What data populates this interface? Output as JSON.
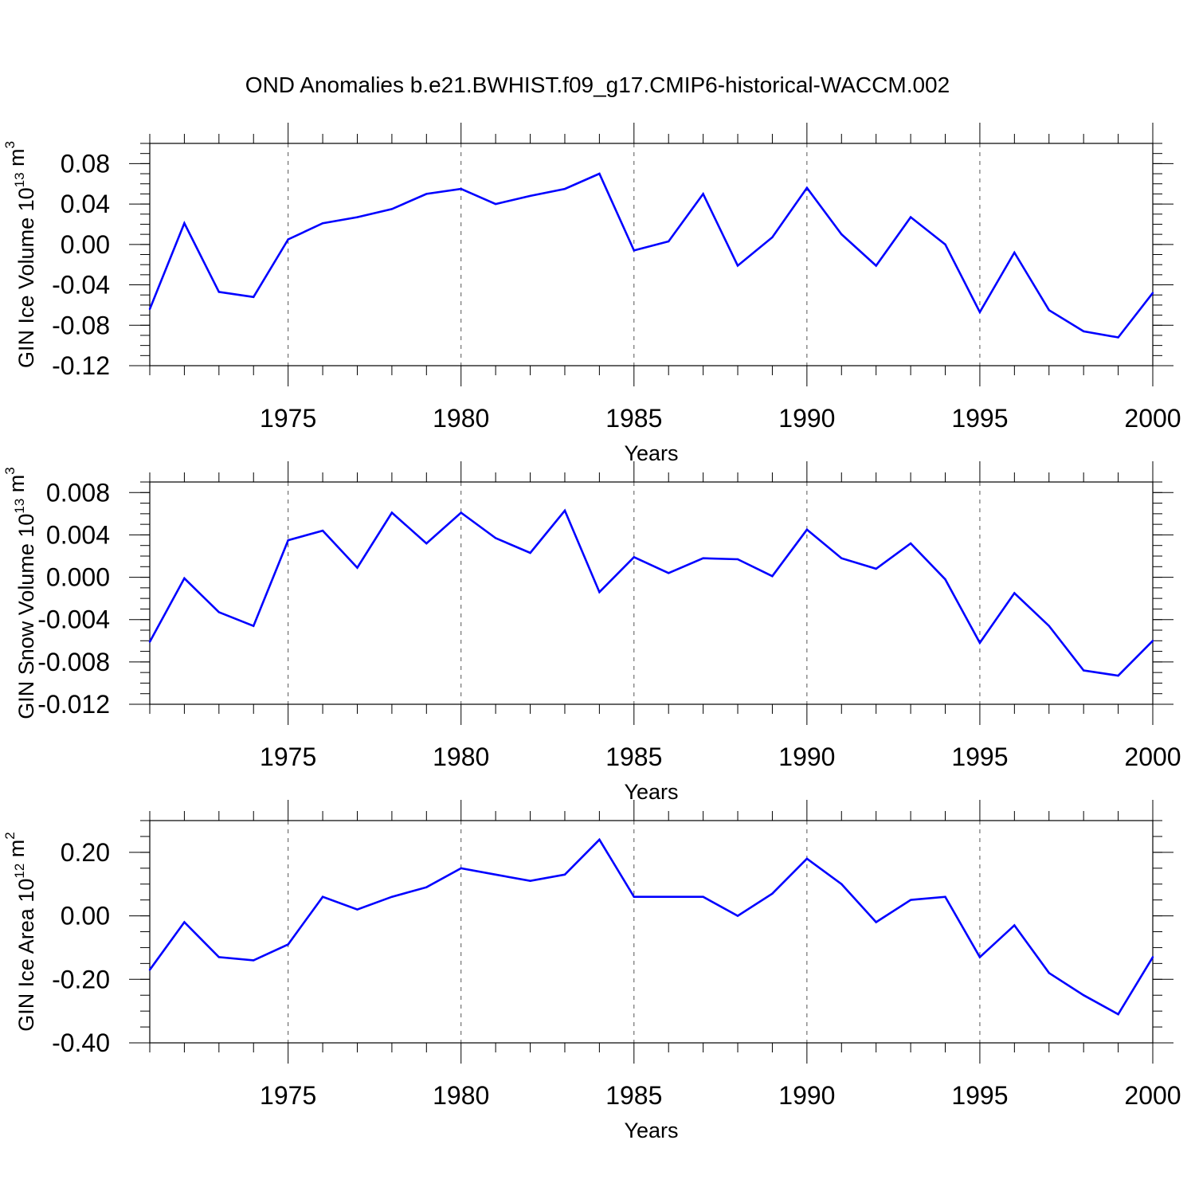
{
  "title": "OND Anomalies b.e21.BWHIST.f09_g17.CMIP6-historical-WACCM.002",
  "line_color": "#0000ff",
  "chart_data": [
    {
      "type": "line",
      "ylabel_base": "GIN Ice Volume 10",
      "ylabel_exp": "13",
      "ylabel_unit": " m",
      "ylabel_unit_exp": "3",
      "xlabel": "Years",
      "xlim": [
        1971,
        2000
      ],
      "ylim": [
        -0.12,
        0.1
      ],
      "yticks": [
        "-0.12",
        "-0.08",
        "-0.04",
        "0.00",
        "0.04",
        "0.08"
      ],
      "xticks": [
        "1975",
        "1980",
        "1985",
        "1990",
        "1995",
        "2000"
      ],
      "x": [
        1971,
        1972,
        1973,
        1974,
        1975,
        1976,
        1977,
        1978,
        1979,
        1980,
        1981,
        1982,
        1983,
        1984,
        1985,
        1986,
        1987,
        1988,
        1989,
        1990,
        1991,
        1992,
        1993,
        1994,
        1995,
        1996,
        1997,
        1998,
        1999,
        2000
      ],
      "values": [
        -0.064,
        0.021,
        -0.047,
        -0.052,
        0.005,
        0.021,
        0.027,
        0.035,
        0.05,
        0.055,
        0.04,
        0.048,
        0.055,
        0.07,
        -0.006,
        0.003,
        0.05,
        -0.021,
        0.007,
        0.056,
        0.01,
        -0.021,
        0.027,
        0.0,
        -0.067,
        -0.008,
        -0.065,
        -0.086,
        -0.092,
        -0.048
      ]
    },
    {
      "type": "line",
      "ylabel_base": "GIN Snow Volume 10",
      "ylabel_exp": "13",
      "ylabel_unit": " m",
      "ylabel_unit_exp": "3",
      "xlabel": "Years",
      "xlim": [
        1971,
        2000
      ],
      "ylim": [
        -0.012,
        0.009
      ],
      "yticks": [
        "-0.012",
        "-0.008",
        "-0.004",
        "0.000",
        "0.004",
        "0.008"
      ],
      "xticks": [
        "1975",
        "1980",
        "1985",
        "1990",
        "1995",
        "2000"
      ],
      "x": [
        1971,
        1972,
        1973,
        1974,
        1975,
        1976,
        1977,
        1978,
        1979,
        1980,
        1981,
        1982,
        1983,
        1984,
        1985,
        1986,
        1987,
        1988,
        1989,
        1990,
        1991,
        1992,
        1993,
        1994,
        1995,
        1996,
        1997,
        1998,
        1999,
        2000
      ],
      "values": [
        -0.0061,
        -0.0001,
        -0.0033,
        -0.0046,
        0.0035,
        0.0044,
        0.0009,
        0.0061,
        0.0032,
        0.0061,
        0.0037,
        0.0023,
        0.0063,
        -0.0014,
        0.0019,
        0.0004,
        0.0018,
        0.0017,
        0.0001,
        0.0045,
        0.0018,
        0.0008,
        0.0032,
        -0.0002,
        -0.0062,
        -0.0015,
        -0.0046,
        -0.0088,
        -0.0093,
        -0.006
      ]
    },
    {
      "type": "line",
      "ylabel_base": "GIN Ice Area 10",
      "ylabel_exp": "12",
      "ylabel_unit": " m",
      "ylabel_unit_exp": "2",
      "xlabel": "Years",
      "xlim": [
        1971,
        2000
      ],
      "ylim": [
        -0.4,
        0.3
      ],
      "yticks": [
        "-0.40",
        "-0.20",
        "0.00",
        "0.20"
      ],
      "xticks": [
        "1975",
        "1980",
        "1985",
        "1990",
        "1995",
        "2000"
      ],
      "x": [
        1971,
        1972,
        1973,
        1974,
        1975,
        1976,
        1977,
        1978,
        1979,
        1980,
        1981,
        1982,
        1983,
        1984,
        1985,
        1986,
        1987,
        1988,
        1989,
        1990,
        1991,
        1992,
        1993,
        1994,
        1995,
        1996,
        1997,
        1998,
        1999,
        2000
      ],
      "values": [
        -0.17,
        -0.02,
        -0.13,
        -0.14,
        -0.09,
        0.06,
        0.02,
        0.06,
        0.09,
        0.15,
        0.13,
        0.11,
        0.13,
        0.24,
        0.06,
        0.06,
        0.06,
        0.0,
        0.07,
        0.18,
        0.1,
        -0.02,
        0.05,
        0.06,
        -0.13,
        -0.03,
        -0.18,
        -0.25,
        -0.31,
        -0.13
      ]
    }
  ]
}
